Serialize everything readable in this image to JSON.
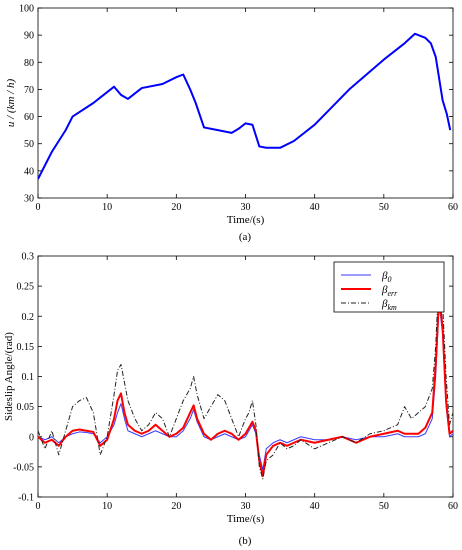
{
  "panel_a": {
    "label": "(a)",
    "ylabel": "u / (km / h)",
    "xlabel": "Time/(s)"
  },
  "panel_b": {
    "label": "(b)",
    "ylabel": "Sideslip Angle/(rad)",
    "xlabel": "Time/(s)",
    "legend": [
      {
        "base": "β",
        "sub": "0"
      },
      {
        "base": "β",
        "sub": "err"
      },
      {
        "base": "β",
        "sub": "km"
      }
    ]
  },
  "colors": {
    "speed": "#0000ff",
    "beta0": "#3b3bff",
    "beta_err": "#ff0000",
    "beta_km": "#222222"
  },
  "chart_data": [
    {
      "type": "line",
      "title": "",
      "xlabel": "Time/(s)",
      "ylabel": "u / (km / h)",
      "xlim": [
        0,
        60
      ],
      "ylim": [
        30,
        100
      ],
      "xticks": [
        0,
        10,
        20,
        30,
        40,
        50,
        60
      ],
      "yticks": [
        30,
        40,
        50,
        60,
        70,
        80,
        90,
        100
      ],
      "grid": false,
      "series": [
        {
          "x": [
            0,
            2,
            4,
            5,
            8,
            9,
            11,
            12,
            13,
            15,
            18,
            20,
            21,
            22,
            22.8,
            24,
            26,
            28,
            29,
            30,
            31,
            32,
            33,
            35,
            37,
            40,
            45,
            50,
            53,
            54.5,
            56,
            56.8,
            57.5,
            58.5,
            59.1,
            59.6
          ],
          "values": [
            37,
            47,
            55,
            60,
            65,
            67,
            71,
            68,
            66.5,
            70.5,
            72,
            74.5,
            75.5,
            70,
            65,
            56,
            55,
            54,
            55.5,
            57.5,
            57,
            49,
            48.5,
            48.5,
            51,
            57,
            70,
            81,
            87,
            90.5,
            89,
            87,
            82,
            66,
            61,
            55
          ]
        }
      ]
    },
    {
      "type": "line",
      "title": "",
      "xlabel": "Time/(s)",
      "ylabel": "Sideslip Angle/(rad)",
      "xlim": [
        0,
        60
      ],
      "ylim": [
        -0.1,
        0.3
      ],
      "xticks": [
        0,
        10,
        20,
        30,
        40,
        50,
        60
      ],
      "yticks": [
        -0.1,
        -0.05,
        0,
        0.05,
        0.1,
        0.15,
        0.2,
        0.25,
        0.3
      ],
      "grid": false,
      "legend_position": "top-right",
      "series": [
        {
          "name": "β0",
          "x": [
            0,
            1,
            2,
            3,
            4,
            5,
            6,
            7,
            8,
            9,
            10,
            11,
            11.5,
            12,
            12.5,
            13,
            14,
            15,
            16,
            17,
            18,
            19,
            20,
            21,
            22,
            22.5,
            23,
            24,
            25,
            26,
            27,
            28,
            29,
            30,
            30.5,
            31,
            31.5,
            32,
            32.5,
            33,
            34,
            35,
            36,
            37,
            38,
            40,
            42,
            44,
            46,
            48,
            50,
            52,
            53,
            54,
            55,
            56,
            57,
            57.5,
            58,
            58.5,
            59,
            59.5,
            60
          ],
          "values": [
            0.0,
            -0.005,
            0.0,
            -0.01,
            0.0,
            0.005,
            0.008,
            0.007,
            0.005,
            -0.01,
            0.0,
            0.02,
            0.04,
            0.055,
            0.03,
            0.01,
            0.005,
            0.0,
            0.005,
            0.01,
            0.005,
            0.0,
            0.0,
            0.01,
            0.03,
            0.045,
            0.025,
            0.0,
            -0.005,
            0.0,
            0.005,
            0.0,
            -0.005,
            0.0,
            0.01,
            0.02,
            0.005,
            -0.03,
            -0.055,
            -0.02,
            -0.01,
            -0.005,
            -0.01,
            -0.005,
            0.0,
            -0.005,
            -0.005,
            0.0,
            -0.005,
            0.0,
            0.0,
            0.005,
            0.0,
            0.0,
            0.0,
            0.005,
            0.03,
            0.1,
            0.22,
            0.17,
            0.05,
            0.0,
            0.005
          ]
        },
        {
          "name": "βerr",
          "x": [
            0,
            1,
            2,
            3,
            4,
            5,
            6,
            7,
            8,
            9,
            10,
            11,
            11.5,
            12,
            12.5,
            13,
            14,
            15,
            16,
            17,
            18,
            19,
            20,
            21,
            22,
            22.5,
            23,
            24,
            25,
            26,
            27,
            28,
            29,
            30,
            30.5,
            31,
            31.5,
            32,
            32.5,
            33,
            34,
            35,
            36,
            37,
            38,
            40,
            42,
            44,
            46,
            48,
            50,
            52,
            53,
            54,
            55,
            56,
            57,
            57.5,
            58,
            58.5,
            59,
            59.5,
            60
          ],
          "values": [
            0.0,
            -0.01,
            -0.005,
            -0.015,
            0.0,
            0.01,
            0.012,
            0.01,
            0.008,
            -0.015,
            -0.005,
            0.03,
            0.06,
            0.072,
            0.04,
            0.02,
            0.01,
            0.005,
            0.01,
            0.02,
            0.01,
            0.0,
            0.005,
            0.015,
            0.04,
            0.052,
            0.03,
            0.005,
            -0.005,
            0.005,
            0.01,
            0.005,
            -0.005,
            0.005,
            0.015,
            0.025,
            0.01,
            -0.04,
            -0.065,
            -0.03,
            -0.015,
            -0.01,
            -0.015,
            -0.01,
            -0.005,
            -0.01,
            -0.005,
            0.0,
            -0.01,
            0.0,
            0.005,
            0.01,
            0.005,
            0.005,
            0.005,
            0.015,
            0.04,
            0.12,
            0.235,
            0.18,
            0.06,
            0.005,
            0.01
          ]
        },
        {
          "name": "βkm",
          "x": [
            0,
            1,
            2,
            3,
            4,
            5,
            6,
            7,
            8,
            9,
            10,
            11,
            11.5,
            12,
            12.5,
            13,
            14,
            15,
            16,
            17,
            18,
            19,
            20,
            21,
            22,
            22.5,
            23,
            24,
            25,
            26,
            27,
            28,
            29,
            30,
            30.5,
            31,
            31.5,
            32,
            32.5,
            33,
            34,
            35,
            36,
            37,
            38,
            40,
            42,
            44,
            46,
            48,
            50,
            52,
            53,
            54,
            55,
            56,
            57,
            57.5,
            58,
            58.5,
            59,
            59.5,
            60
          ],
          "values": [
            0.01,
            -0.02,
            0.01,
            -0.03,
            0.01,
            0.05,
            0.06,
            0.065,
            0.04,
            -0.03,
            0.0,
            0.07,
            0.11,
            0.12,
            0.09,
            0.06,
            0.03,
            0.01,
            0.02,
            0.04,
            0.03,
            0.0,
            0.03,
            0.06,
            0.08,
            0.1,
            0.07,
            0.03,
            0.05,
            0.07,
            0.06,
            0.03,
            0.0,
            0.03,
            0.04,
            0.06,
            0.02,
            -0.05,
            -0.07,
            -0.04,
            -0.03,
            -0.01,
            -0.02,
            -0.015,
            -0.005,
            -0.02,
            -0.01,
            0.0,
            -0.01,
            0.005,
            0.01,
            0.02,
            0.05,
            0.03,
            0.04,
            0.05,
            0.08,
            0.15,
            0.28,
            0.22,
            0.1,
            0.02,
            0.04
          ]
        }
      ]
    }
  ]
}
